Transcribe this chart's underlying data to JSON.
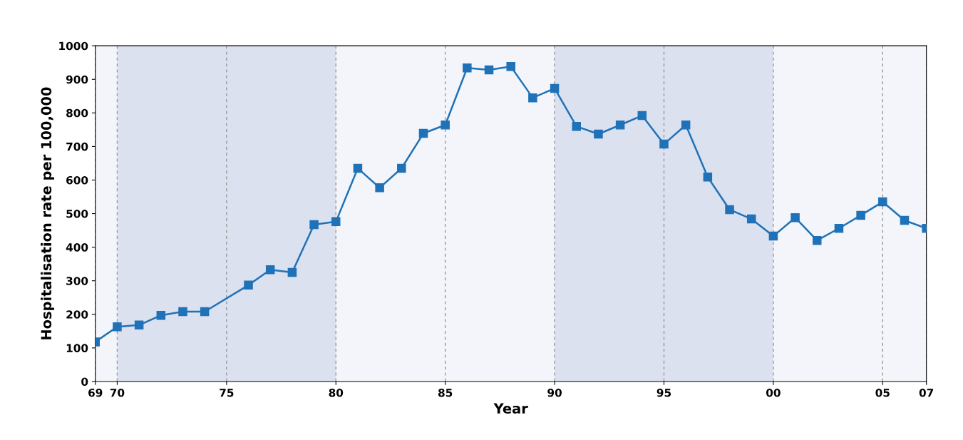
{
  "chart_data": {
    "type": "line",
    "xlabel": "Year",
    "ylabel": "Hospitalisation rate per 100,000",
    "x": [
      1969,
      1970,
      1971,
      1972,
      1973,
      1974,
      1976,
      1977,
      1978,
      1979,
      1980,
      1981,
      1982,
      1983,
      1984,
      1985,
      1986,
      1987,
      1988,
      1989,
      1990,
      1991,
      1992,
      1993,
      1994,
      1995,
      1996,
      1997,
      1998,
      1999,
      2000,
      2001,
      2002,
      2003,
      2004,
      2005,
      2006,
      2007
    ],
    "series": [
      {
        "color": "#1f72b8",
        "values": [
          118,
          163,
          168,
          197,
          208,
          208,
          287,
          333,
          325,
          467,
          476,
          635,
          577,
          635,
          739,
          764,
          934,
          928,
          938,
          845,
          873,
          760,
          737,
          764,
          792,
          707,
          764,
          609,
          512,
          484,
          433,
          488,
          420,
          456,
          495,
          535,
          480,
          456
        ]
      }
    ],
    "xlim": [
      1969,
      2007
    ],
    "xticks": [
      {
        "value": 1969,
        "label": "69"
      },
      {
        "value": 1970,
        "label": "70"
      },
      {
        "value": 1975,
        "label": "75"
      },
      {
        "value": 1980,
        "label": "80"
      },
      {
        "value": 1985,
        "label": "85"
      },
      {
        "value": 1990,
        "label": "90"
      },
      {
        "value": 1995,
        "label": "95"
      },
      {
        "value": 2000,
        "label": "00"
      },
      {
        "value": 2005,
        "label": "05"
      },
      {
        "value": 2007,
        "label": "07"
      }
    ],
    "ylim": [
      0,
      1000
    ],
    "yticks": [
      0,
      100,
      200,
      300,
      400,
      500,
      600,
      700,
      800,
      900,
      1000
    ],
    "bands": [
      {
        "axis": "x",
        "from": 1970,
        "to": 1980,
        "color": "#dbe1ef"
      },
      {
        "axis": "x",
        "from": 1990,
        "to": 2000,
        "color": "#dbe1ef"
      }
    ],
    "grid": "x",
    "marker": "square",
    "line_style": "solid",
    "legend": false
  }
}
